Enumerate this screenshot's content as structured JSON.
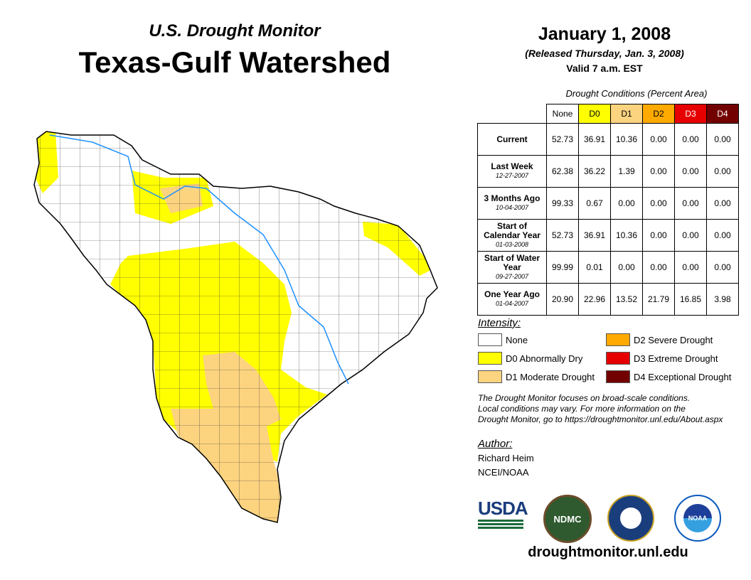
{
  "header": {
    "subtitle": "U.S. Drought Monitor",
    "title": "Texas-Gulf Watershed",
    "date": "January 1, 2008",
    "released": "(Released Thursday, Jan. 3, 2008)",
    "valid": "Valid 7 a.m. EST"
  },
  "table": {
    "caption": "Drought Conditions (Percent Area)",
    "columns": [
      {
        "label": "None",
        "color": "#ffffff",
        "text": "#000"
      },
      {
        "label": "D0",
        "color": "#ffff00",
        "text": "#000"
      },
      {
        "label": "D1",
        "color": "#fcd37f",
        "text": "#000"
      },
      {
        "label": "D2",
        "color": "#ffaa00",
        "text": "#000"
      },
      {
        "label": "D3",
        "color": "#e60000",
        "text": "#fff"
      },
      {
        "label": "D4",
        "color": "#730000",
        "text": "#fff"
      }
    ],
    "rows": [
      {
        "label": "Current",
        "date": "",
        "values": [
          "52.73",
          "36.91",
          "10.36",
          "0.00",
          "0.00",
          "0.00"
        ]
      },
      {
        "label": "Last Week",
        "date": "12-27-2007",
        "values": [
          "62.38",
          "36.22",
          "1.39",
          "0.00",
          "0.00",
          "0.00"
        ]
      },
      {
        "label": "3 Months Ago",
        "date": "10-04-2007",
        "values": [
          "99.33",
          "0.67",
          "0.00",
          "0.00",
          "0.00",
          "0.00"
        ]
      },
      {
        "label": "Start of Calendar Year",
        "date": "01-03-2008",
        "values": [
          "52.73",
          "36.91",
          "10.36",
          "0.00",
          "0.00",
          "0.00"
        ]
      },
      {
        "label": "Start of Water Year",
        "date": "09-27-2007",
        "values": [
          "99.99",
          "0.01",
          "0.00",
          "0.00",
          "0.00",
          "0.00"
        ]
      },
      {
        "label": "One Year Ago",
        "date": "01-04-2007",
        "values": [
          "20.90",
          "22.96",
          "13.52",
          "21.79",
          "16.85",
          "3.98"
        ]
      }
    ]
  },
  "legend": {
    "heading": "Intensity:",
    "items": [
      {
        "label": "None",
        "color": "#ffffff"
      },
      {
        "label": "D2 Severe Drought",
        "color": "#ffaa00"
      },
      {
        "label": "D0 Abnormally Dry",
        "color": "#ffff00"
      },
      {
        "label": "D3 Extreme Drought",
        "color": "#e60000"
      },
      {
        "label": "D1 Moderate Drought",
        "color": "#fcd37f"
      },
      {
        "label": "D4 Exceptional Drought",
        "color": "#730000"
      }
    ]
  },
  "note": [
    "The Drought Monitor focuses on broad-scale conditions.",
    "Local conditions may vary. For more information on the",
    "Drought Monitor, go to https://droughtmonitor.unl.edu/About.aspx"
  ],
  "author": {
    "heading": "Author:",
    "name": "Richard Heim",
    "org": "NCEI/NOAA"
  },
  "logos": {
    "usda": "USDA",
    "ndmc": "NDMC",
    "noaa": "NOAA"
  },
  "footer_url": "droughtmonitor.unl.edu"
}
